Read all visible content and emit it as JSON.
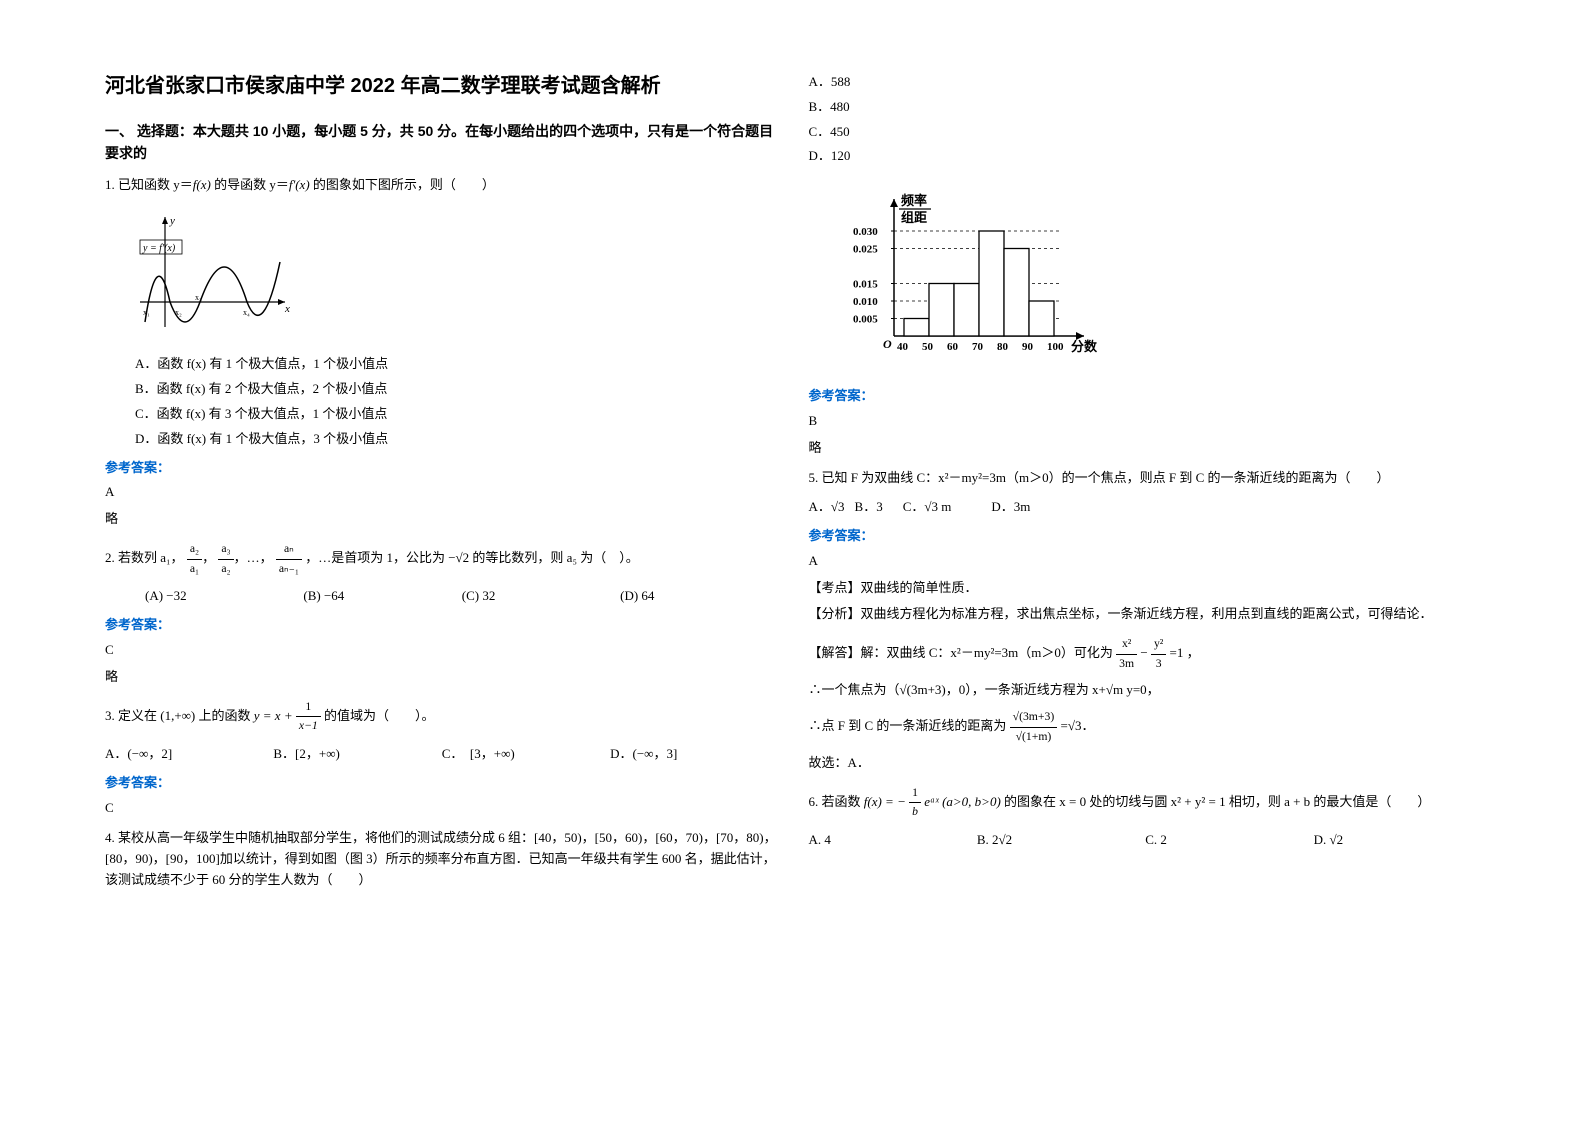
{
  "title": "河北省张家口市侯家庙中学 2022 年高二数学理联考试题含解析",
  "section1_header": "一、 选择题：本大题共 10 小题，每小题 5 分，共 50 分。在每小题给出的四个选项中，只有是一个符合题目要求的",
  "q1": {
    "stem_prefix": "1. 已知函数 y＝",
    "stem_mid": " 的导函数 y＝",
    "stem_suffix": " 的图象如下图所示，则（　　）",
    "fx": "f(x)",
    "fpx": "f'(x)",
    "graph_label": "y = f'(x)",
    "optA": "A．函数 f(x) 有 1 个极大值点，1 个极小值点",
    "optB": "B．函数 f(x) 有 2 个极大值点，2 个极小值点",
    "optC": "C．函数 f(x) 有 3 个极大值点，1 个极小值点",
    "optD": "D．函数 f(x) 有 1 个极大值点，3 个极小值点",
    "answer_label": "参考答案：",
    "answer": "A",
    "brief": "略"
  },
  "q2": {
    "stem": "2. 若数列 a₁，",
    "seq_desc": "，…是首项为 1，公比为 −√2 的等比数列，则 a₅ 为（　）。",
    "f1n": "a₂",
    "f1d": "a₁",
    "f2n": "a₃",
    "f2d": "a₂",
    "f3n": "aₙ",
    "f3d": "aₙ₋₁",
    "optA": "(A) −32",
    "optB": "(B) −64",
    "optC": "(C) 32",
    "optD": "(D) 64",
    "answer_label": "参考答案：",
    "answer": "C",
    "brief": "略"
  },
  "q3": {
    "stem_pre": "3. 定义在 (1,+∞) 上的函数 ",
    "stem_post": " 的值域为（　　）。",
    "yeq": "y = x + ",
    "frac_n": "1",
    "frac_d": "x−1",
    "optA": "A．(−∞，2]",
    "optB": "B．[2，+∞)",
    "optC": "C．　[3，+∞)",
    "optD": "D．(−∞，3]",
    "answer_label": "参考答案：",
    "answer": "C"
  },
  "q4": {
    "stem": "4. 某校从高一年级学生中随机抽取部分学生，将他们的测试成绩分成 6 组：[40，50)，[50，60)，[60，70)，[70，80)，[80，90)，[90，100]加以统计，得到如图（图 3）所示的频率分布直方图．已知高一年级共有学生 600 名，据此估计，该测试成绩不少于 60 分的学生人数为（　　）",
    "optA": "A．588",
    "optB": "B．480",
    "optC": "C．450",
    "optD": "D．120",
    "hist": {
      "ylabel1": "频率",
      "ylabel2": "组距",
      "yticks": [
        "0.005",
        "0.010",
        "0.015",
        "0.025",
        "0.030"
      ],
      "yvals": [
        0.005,
        0.01,
        0.015,
        0.025,
        0.03
      ],
      "xticks": [
        "40",
        "50",
        "60",
        "70",
        "80",
        "90",
        "100"
      ],
      "xlabel": "分数",
      "bars": [
        0.005,
        0.015,
        0.015,
        0.03,
        0.025,
        0.01
      ],
      "bar_color": "#ffffff",
      "stroke": "#000000"
    },
    "answer_label": "参考答案：",
    "answer": "B",
    "brief": "略"
  },
  "q5": {
    "stem": "5. 已知 F 为双曲线 C：x²－my²=3m（m＞0）的一个焦点，则点 F 到 C 的一条渐近线的距离为（　　）",
    "optA": "A．√3",
    "optB": "B．3",
    "optC": "C．√3 m",
    "optD": "D．3m",
    "answer_label": "参考答案：",
    "answer": "A",
    "kp_label": "【考点】",
    "kp": "双曲线的简单性质．",
    "fx_label": "【分析】",
    "fx": "双曲线方程化为标准方程，求出焦点坐标，一条渐近线方程，利用点到直线的距离公式，可得结论．",
    "jd_label": "【解答】",
    "jd_pre": "解：双曲线 C：x²－my²=3m（m＞0）可化为 ",
    "jd_f1n": "x²",
    "jd_f1d": "3m",
    "jd_dash": "−",
    "jd_f2n": "y²",
    "jd_f2d": "3",
    "jd_eq": "=1 ，",
    "jd_line2": "∴一个焦点为（√(3m+3)，0），一条渐近线方程为 x+√m y=0，",
    "jd_line3_pre": "∴点 F 到 C 的一条渐近线的距离为 ",
    "jd_f3n": "√(3m+3)",
    "jd_f3d": "√(1+m)",
    "jd_line3_post": " =√3．",
    "jd_line4": "故选：A．"
  },
  "q6": {
    "stem_pre": "6. 若函数 ",
    "fx_eq_pre": "f(x) = −",
    "fx_f1n": "1",
    "fx_f1d": "b",
    "fx_eq_post": "eᵃˣ (a>0, b>0)",
    "stem_mid": " 的图象在 x = 0 处的切线与圆 x² + y² = 1 相切，则 a + b 的最大值是（　　）",
    "optA": "A. 4",
    "optB": "B. 2√2",
    "optC": "C. 2",
    "optD": "D. √2"
  }
}
